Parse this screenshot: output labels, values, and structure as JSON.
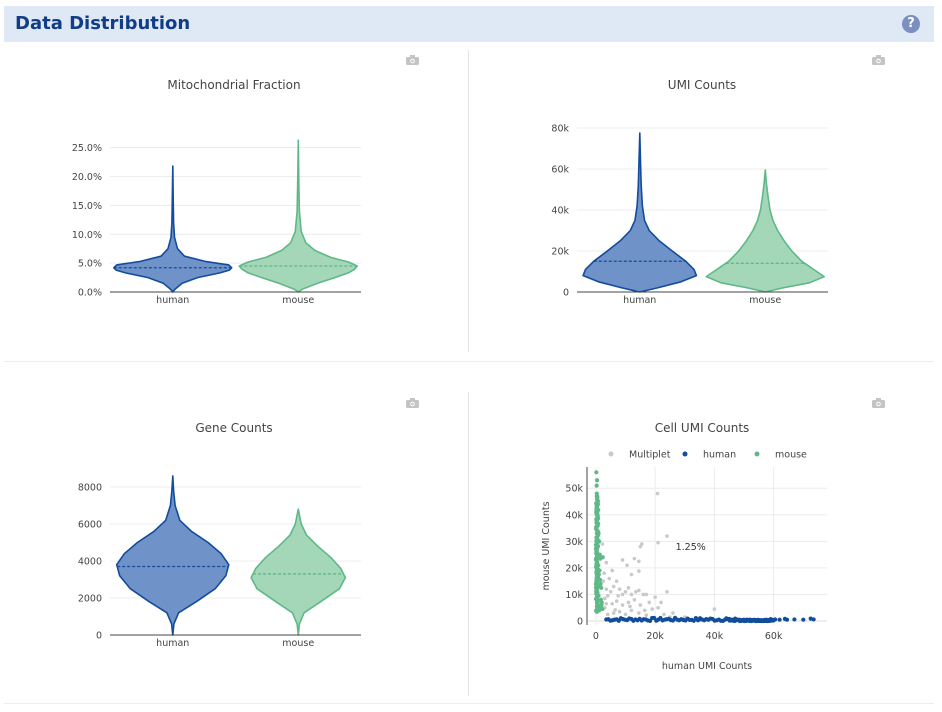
{
  "header": {
    "title": "Data Distribution",
    "help_icon": "question-circle-icon"
  },
  "colors": {
    "human": "#124c9c",
    "human_fill": "#6f92c8",
    "mouse": "#5fb888",
    "mouse_fill": "#a4d6b8",
    "multiplet": "#c9c9c9"
  },
  "panels": {
    "mito": {
      "title": "Mitochondrial Fraction",
      "camera_icon": "camera-icon"
    },
    "umi": {
      "title": "UMI Counts",
      "camera_icon": "camera-icon"
    },
    "gene": {
      "title": "Gene Counts",
      "camera_icon": "camera-icon"
    },
    "cell": {
      "title": "Cell UMI Counts",
      "camera_icon": "camera-icon"
    }
  },
  "chart_data": [
    {
      "type": "violin",
      "title": "Mitochondrial Fraction",
      "categories": [
        "human",
        "mouse"
      ],
      "ylim": [
        0,
        26.5
      ],
      "yticks": [
        0,
        5,
        10,
        15,
        20,
        25
      ],
      "ytick_labels": [
        "0.0%",
        "5.0%",
        "10.0%",
        "15.0%",
        "20.0%",
        "25.0%"
      ],
      "series": [
        {
          "name": "human",
          "min": 0,
          "max": 21.8,
          "median": 4.2,
          "profile": [
            [
              0,
              0.0
            ],
            [
              0.5,
              0.04
            ],
            [
              1.5,
              0.16
            ],
            [
              2.5,
              0.42
            ],
            [
              3.3,
              0.8
            ],
            [
              3.8,
              0.96
            ],
            [
              4.2,
              1.0
            ],
            [
              4.7,
              0.95
            ],
            [
              5.3,
              0.55
            ],
            [
              6.2,
              0.2
            ],
            [
              7.5,
              0.08
            ],
            [
              9.5,
              0.03
            ],
            [
              12,
              0.015
            ],
            [
              16,
              0.008
            ],
            [
              21.8,
              0.0
            ]
          ]
        },
        {
          "name": "mouse",
          "min": 0,
          "max": 26.3,
          "median": 4.5,
          "profile": [
            [
              0,
              0.0
            ],
            [
              0.5,
              0.07
            ],
            [
              1.5,
              0.33
            ],
            [
              2.5,
              0.62
            ],
            [
              3.3,
              0.85
            ],
            [
              4.0,
              0.96
            ],
            [
              4.5,
              1.0
            ],
            [
              5.2,
              0.85
            ],
            [
              6.0,
              0.55
            ],
            [
              7.2,
              0.28
            ],
            [
              8.5,
              0.13
            ],
            [
              10.5,
              0.05
            ],
            [
              14,
              0.02
            ],
            [
              19,
              0.01
            ],
            [
              26.3,
              0.0
            ]
          ]
        }
      ]
    },
    {
      "type": "violin",
      "title": "UMI Counts",
      "categories": [
        "human",
        "mouse"
      ],
      "ylim": [
        0,
        80000
      ],
      "yticks": [
        0,
        20000,
        40000,
        60000,
        80000
      ],
      "ytick_labels": [
        "0",
        "20k",
        "40k",
        "60k",
        "80k"
      ],
      "series": [
        {
          "name": "human",
          "min": 0,
          "max": 77500,
          "median": 15000,
          "profile": [
            [
              0,
              0.0
            ],
            [
              2000,
              0.3
            ],
            [
              5000,
              0.7
            ],
            [
              8000,
              0.96
            ],
            [
              11000,
              0.92
            ],
            [
              15000,
              0.78
            ],
            [
              20000,
              0.55
            ],
            [
              25000,
              0.33
            ],
            [
              30000,
              0.16
            ],
            [
              35000,
              0.08
            ],
            [
              42000,
              0.045
            ],
            [
              52000,
              0.025
            ],
            [
              62000,
              0.015
            ],
            [
              77500,
              0.0
            ]
          ]
        },
        {
          "name": "mouse",
          "min": 0,
          "max": 59500,
          "median": 14000,
          "profile": [
            [
              0,
              0.0
            ],
            [
              2000,
              0.3
            ],
            [
              4500,
              0.75
            ],
            [
              7500,
              1.0
            ],
            [
              11000,
              0.82
            ],
            [
              15000,
              0.62
            ],
            [
              20000,
              0.45
            ],
            [
              25000,
              0.32
            ],
            [
              30000,
              0.21
            ],
            [
              35000,
              0.13
            ],
            [
              40000,
              0.08
            ],
            [
              47000,
              0.045
            ],
            [
              53000,
              0.02
            ],
            [
              59500,
              0.0
            ]
          ]
        }
      ]
    },
    {
      "type": "violin",
      "title": "Gene Counts",
      "categories": [
        "human",
        "mouse"
      ],
      "ylim": [
        0,
        8700
      ],
      "yticks": [
        0,
        2000,
        4000,
        6000,
        8000
      ],
      "ytick_labels": [
        "0",
        "2000",
        "4000",
        "6000",
        "8000"
      ],
      "series": [
        {
          "name": "human",
          "min": 0,
          "max": 8600,
          "median": 3700,
          "profile": [
            [
              0,
              0.0
            ],
            [
              600,
              0.02
            ],
            [
              1200,
              0.1
            ],
            [
              1800,
              0.4
            ],
            [
              2500,
              0.72
            ],
            [
              3200,
              0.9
            ],
            [
              3800,
              0.95
            ],
            [
              4400,
              0.82
            ],
            [
              5000,
              0.6
            ],
            [
              5600,
              0.32
            ],
            [
              6200,
              0.12
            ],
            [
              7000,
              0.04
            ],
            [
              7800,
              0.015
            ],
            [
              8600,
              0.0
            ]
          ]
        },
        {
          "name": "mouse",
          "min": 0,
          "max": 6800,
          "median": 3300,
          "profile": [
            [
              0,
              0.0
            ],
            [
              600,
              0.02
            ],
            [
              1200,
              0.1
            ],
            [
              1800,
              0.38
            ],
            [
              2500,
              0.7
            ],
            [
              3100,
              0.8
            ],
            [
              3600,
              0.72
            ],
            [
              4200,
              0.55
            ],
            [
              4800,
              0.33
            ],
            [
              5400,
              0.14
            ],
            [
              6000,
              0.05
            ],
            [
              6800,
              0.0
            ]
          ]
        }
      ]
    },
    {
      "type": "scatter",
      "title": "Cell UMI Counts",
      "xlabel": "human UMI Counts",
      "ylabel": "mouse UMI Counts",
      "xlim": [
        -3000,
        78000
      ],
      "ylim": [
        -1500,
        58000
      ],
      "xticks": [
        0,
        20000,
        40000,
        60000
      ],
      "xtick_labels": [
        "0",
        "20k",
        "40k",
        "60k"
      ],
      "yticks": [
        0,
        10000,
        20000,
        30000,
        40000,
        50000
      ],
      "ytick_labels": [
        "0",
        "10k",
        "20k",
        "30k",
        "40k",
        "50k"
      ],
      "legend": {
        "placement": "top",
        "entries": [
          "Multiplet",
          "human",
          "mouse"
        ]
      },
      "annotation": "1.25%",
      "series": [
        {
          "name": "Multiplet",
          "points": [
            [
              20800,
              48000
            ],
            [
              24000,
              32000
            ],
            [
              21000,
              29500
            ],
            [
              15500,
              29000
            ],
            [
              15000,
              28000
            ],
            [
              9000,
              23000
            ],
            [
              13000,
              23500
            ],
            [
              14500,
              22500
            ],
            [
              10500,
              21000
            ],
            [
              5500,
              19000
            ],
            [
              14500,
              18800
            ],
            [
              12000,
              17500
            ],
            [
              24000,
              11000
            ],
            [
              14500,
              11500
            ],
            [
              11000,
              12500
            ],
            [
              8000,
              12000
            ],
            [
              9000,
              10000
            ],
            [
              7500,
              9500
            ],
            [
              10000,
              11000
            ],
            [
              12000,
              10000
            ],
            [
              13500,
              11000
            ],
            [
              16000,
              10000
            ],
            [
              17000,
              10000
            ],
            [
              20000,
              9000
            ],
            [
              22000,
              7000
            ],
            [
              21000,
              5000
            ],
            [
              13000,
              8000
            ],
            [
              11000,
              7000
            ],
            [
              7000,
              7500
            ],
            [
              5500,
              6500
            ],
            [
              9000,
              6000
            ],
            [
              15000,
              6000
            ],
            [
              16500,
              4000
            ],
            [
              12000,
              4000
            ],
            [
              8000,
              3500
            ],
            [
              6000,
              3000
            ],
            [
              10000,
              2500
            ],
            [
              4000,
              2500
            ],
            [
              14500,
              3000
            ],
            [
              40000,
              4500
            ],
            [
              17000,
              2200
            ],
            [
              3000,
              5000
            ],
            [
              6500,
              4200
            ],
            [
              4000,
              9500
            ],
            [
              3000,
              8500
            ],
            [
              3500,
              12000
            ],
            [
              2500,
              15000
            ],
            [
              2800,
              18000
            ],
            [
              4500,
              16000
            ],
            [
              6000,
              13000
            ],
            [
              7000,
              15000
            ],
            [
              23000,
              2500
            ],
            [
              19000,
              4500
            ],
            [
              25000,
              1500
            ],
            [
              30000,
              1500
            ],
            [
              18000,
              7000
            ],
            [
              5000,
              11000
            ],
            [
              3500,
              22000
            ],
            [
              11500,
              5500
            ],
            [
              2200,
              29000
            ],
            [
              3500,
              6500
            ],
            [
              26000,
              3000
            ]
          ]
        },
        {
          "name": "human",
          "segments": [
            [
              3500,
              45000,
              0,
              1200
            ],
            [
              45000,
              55000,
              0,
              500
            ],
            [
              55000,
              60000,
              0,
              400
            ]
          ],
          "points": [
            [
              60500,
              600
            ],
            [
              62000,
              500
            ],
            [
              63800,
              800
            ],
            [
              64500,
              500
            ],
            [
              67000,
              600
            ],
            [
              70000,
              500
            ],
            [
              72500,
              900
            ],
            [
              73500,
              600
            ],
            [
              59000,
              700
            ],
            [
              57500,
              500
            ],
            [
              47000,
              900
            ],
            [
              48500,
              500
            ],
            [
              44000,
              1000
            ],
            [
              46000,
              500
            ],
            [
              50000,
              400
            ],
            [
              52000,
              500
            ],
            [
              54000,
              400
            ],
            [
              35000,
              600
            ]
          ]
        },
        {
          "name": "mouse",
          "band": {
            "x_max": 800,
            "y_min": 3500,
            "y_max": 47000
          },
          "points": [
            [
              150,
              56000
            ],
            [
              400,
              53000
            ],
            [
              250,
              51000
            ],
            [
              300,
              48000
            ],
            [
              450,
              47000
            ],
            [
              600,
              45000
            ],
            [
              200,
              42000
            ],
            [
              700,
              44000
            ],
            [
              350,
              38000
            ],
            [
              500,
              36000
            ],
            [
              900,
              33000
            ],
            [
              1100,
              30000
            ],
            [
              600,
              28000
            ],
            [
              1300,
              25000
            ],
            [
              1500,
              23500
            ],
            [
              800,
              21000
            ],
            [
              1200,
              19000
            ],
            [
              1000,
              17500
            ],
            [
              1400,
              15500
            ],
            [
              1600,
              14000
            ],
            [
              1800,
              12500
            ],
            [
              900,
              9500
            ],
            [
              1700,
              8000
            ],
            [
              2000,
              7000
            ],
            [
              1500,
              5000
            ],
            [
              1100,
              4000
            ],
            [
              2300,
              24000
            ],
            [
              1900,
              6000
            ],
            [
              2200,
              4500
            ]
          ]
        }
      ]
    }
  ]
}
